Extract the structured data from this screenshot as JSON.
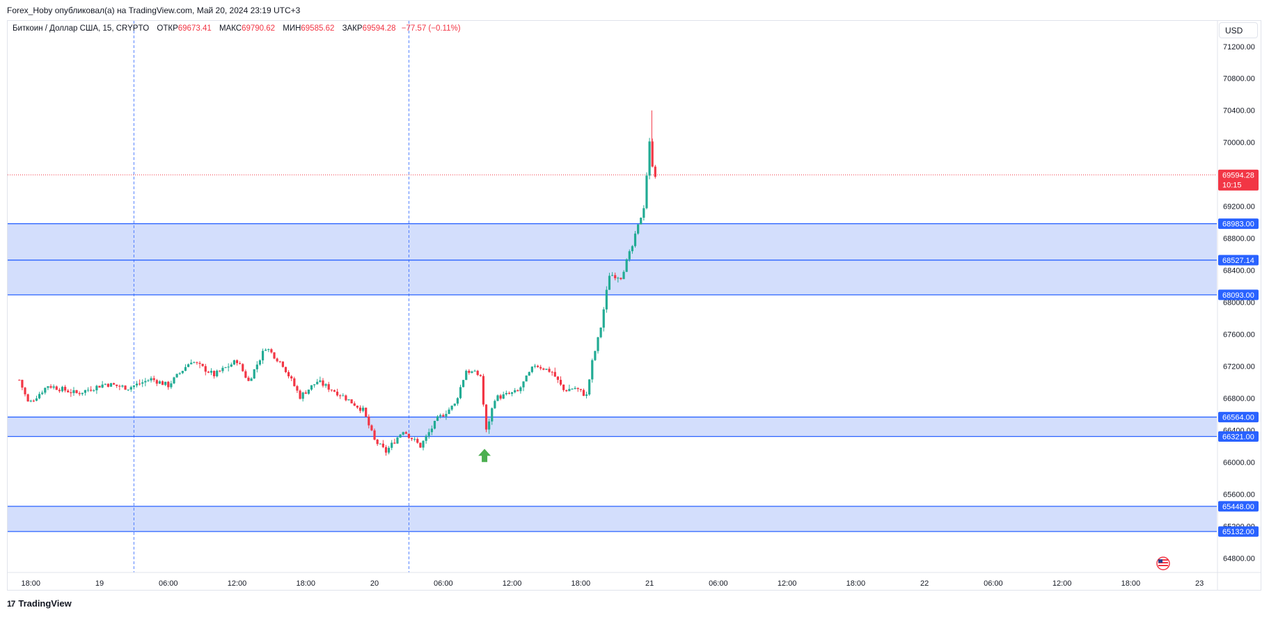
{
  "header": {
    "published_line": "Forex_Hoby опубликовал(а) на TradingView.com, Май 20, 2024 23:19 UTC+3"
  },
  "legend": {
    "symbol": "Биткоин / Доллар США, 15, CRYPTO",
    "open_label": "ОТКР",
    "open_value": "69673.41",
    "high_label": "МАКС",
    "high_value": "69790.62",
    "low_label": "МИН",
    "low_value": "69585.62",
    "close_label": "ЗАКР",
    "close_value": "69594.28",
    "change": "−77.57 (−0.11%)"
  },
  "currency_button": "USD",
  "brand": {
    "logo": "17",
    "name": "TradingView"
  },
  "colors": {
    "up": "#22ab94",
    "down": "#f23645",
    "zone_fill": "#d3defc",
    "zone_line": "#2962ff",
    "current_price": "#f23645",
    "signal_arrow": "#4caf50"
  },
  "icons": [
    "us-flag-icon",
    "green-up-arrow-icon",
    "tradingview-logo-icon"
  ],
  "chart_data": {
    "type": "candlestick",
    "timeframe": "15",
    "y_axis": {
      "ticks": [
        "71200.00",
        "70800.00",
        "70400.00",
        "70000.00",
        "69200.00",
        "68800.00",
        "68400.00",
        "68000.00",
        "67600.00",
        "67200.00",
        "66800.00",
        "66400.00",
        "66000.00",
        "65600.00",
        "65200.00",
        "64800.00"
      ],
      "ylim": [
        64620,
        71520
      ]
    },
    "x_axis": {
      "ticks": [
        "18:00",
        "19",
        "06:00",
        "12:00",
        "18:00",
        "20",
        "06:00",
        "12:00",
        "18:00",
        "21",
        "06:00",
        "12:00",
        "18:00",
        "22",
        "06:00",
        "12:00",
        "18:00",
        "23"
      ]
    },
    "current_price": {
      "value": "69594.28",
      "countdown": "10:15"
    },
    "horizontal_levels": [
      "68983.00",
      "68527.14",
      "68093.00",
      "66564.00",
      "66321.00",
      "65448.00",
      "65132.00"
    ],
    "zones": [
      {
        "from": 68093,
        "to": 68983
      },
      {
        "from": 66321,
        "to": 66564
      },
      {
        "from": 65132,
        "to": 65448
      }
    ],
    "session_lines_hours": [
      3,
      27
    ],
    "signal": {
      "type": "buy-arrow",
      "hour": 33.6,
      "price": 66080
    },
    "waypoints": [
      {
        "h": -7.0,
        "p": 67030
      },
      {
        "h": -6.2,
        "p": 66730
      },
      {
        "h": -4.5,
        "p": 66960
      },
      {
        "h": -2.0,
        "p": 66860
      },
      {
        "h": 0.5,
        "p": 66980
      },
      {
        "h": 2.5,
        "p": 66930
      },
      {
        "h": 4.5,
        "p": 67040
      },
      {
        "h": 6.0,
        "p": 66960
      },
      {
        "h": 8.0,
        "p": 67270
      },
      {
        "h": 10.0,
        "p": 67090
      },
      {
        "h": 12.0,
        "p": 67270
      },
      {
        "h": 13.0,
        "p": 67010
      },
      {
        "h": 14.5,
        "p": 67440
      },
      {
        "h": 16.0,
        "p": 67220
      },
      {
        "h": 17.5,
        "p": 66820
      },
      {
        "h": 19.0,
        "p": 67010
      },
      {
        "h": 21.0,
        "p": 66850
      },
      {
        "h": 23.0,
        "p": 66650
      },
      {
        "h": 24.0,
        "p": 66270
      },
      {
        "h": 25.0,
        "p": 66130
      },
      {
        "h": 26.5,
        "p": 66400
      },
      {
        "h": 28.0,
        "p": 66200
      },
      {
        "h": 29.5,
        "p": 66540
      },
      {
        "h": 31.0,
        "p": 66720
      },
      {
        "h": 32.0,
        "p": 67150
      },
      {
        "h": 33.3,
        "p": 67080
      },
      {
        "h": 33.7,
        "p": 66360
      },
      {
        "h": 34.5,
        "p": 66800
      },
      {
        "h": 36.5,
        "p": 66880
      },
      {
        "h": 38.0,
        "p": 67220
      },
      {
        "h": 39.5,
        "p": 67130
      },
      {
        "h": 40.5,
        "p": 66900
      },
      {
        "h": 41.5,
        "p": 66930
      },
      {
        "h": 42.5,
        "p": 66830
      },
      {
        "h": 43.0,
        "p": 67250
      },
      {
        "h": 43.7,
        "p": 67650
      },
      {
        "h": 44.5,
        "p": 68350
      },
      {
        "h": 45.5,
        "p": 68320
      },
      {
        "h": 46.5,
        "p": 68700
      },
      {
        "h": 47.5,
        "p": 69200
      },
      {
        "h": 48.0,
        "p": 69990
      },
      {
        "h": 48.3,
        "p": 69673
      },
      {
        "h": 48.5,
        "p": 69594
      }
    ]
  }
}
